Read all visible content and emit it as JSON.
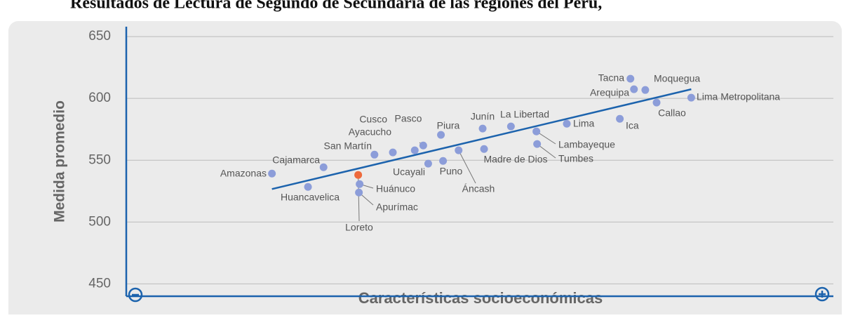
{
  "chart_data": {
    "type": "scatter",
    "title": "Resultados de Lectura de Segundo de Secundaria de las regiones del Perú,",
    "y_label": "Medida promedio",
    "x_label": "Características socioeconómicas",
    "labels": [
      "Amazonas",
      "Cajamarca",
      "Huancavelica",
      "Loreto",
      "Huánuco",
      "Apurímac",
      "San Martín",
      "Ayacucho",
      "Cusco",
      "Pasco",
      "Ucayali",
      "Puno",
      "Piura",
      "Áncash",
      "Junín",
      "Madre de Dios",
      "La Libertad",
      "Lambayeque",
      "Tumbes",
      "Lima",
      "Ica",
      "Tacna",
      "Arequipa",
      "Moquegua",
      "Callao",
      "Lima Metropolitana"
    ],
    "x": [
      20.6,
      27.9,
      25.7,
      32.8,
      33.0,
      32.9,
      35.1,
      37.7,
      40.8,
      42.0,
      42.7,
      44.8,
      44.5,
      47.0,
      50.4,
      50.6,
      54.4,
      58.0,
      58.1,
      62.3,
      69.8,
      71.3,
      71.8,
      73.4,
      75.0,
      79.9
    ],
    "values": [
      539.2,
      544.3,
      528.4,
      538.1,
      530.7,
      523.9,
      554.5,
      556.3,
      558.0,
      561.9,
      547.2,
      549.4,
      570.5,
      558.0,
      575.6,
      559.1,
      577.3,
      573.3,
      563.1,
      579.5,
      583.5,
      615.9,
      607.4,
      606.8,
      596.6,
      600.6
    ],
    "colors": [
      "#8c9dd9",
      "#8c9dd9",
      "#8c9dd9",
      "#ee6a3c",
      "#8c9dd9",
      "#8c9dd9",
      "#8c9dd9",
      "#8c9dd9",
      "#8c9dd9",
      "#8c9dd9",
      "#8c9dd9",
      "#8c9dd9",
      "#8c9dd9",
      "#8c9dd9",
      "#8c9dd9",
      "#8c9dd9",
      "#8c9dd9",
      "#8c9dd9",
      "#8c9dd9",
      "#8c9dd9",
      "#8c9dd9",
      "#8c9dd9",
      "#8c9dd9",
      "#8c9dd9",
      "#8c9dd9",
      "#8c9dd9"
    ],
    "trend": {
      "x": [
        20.6,
        79.9
      ],
      "values": [
        526.7,
        607.4
      ],
      "color": "#1c63ad"
    },
    "xlim": [
      0,
      100
    ],
    "ylim": [
      440,
      658
    ],
    "yticks": [
      450,
      500,
      550,
      600,
      650
    ],
    "grid": true
  }
}
